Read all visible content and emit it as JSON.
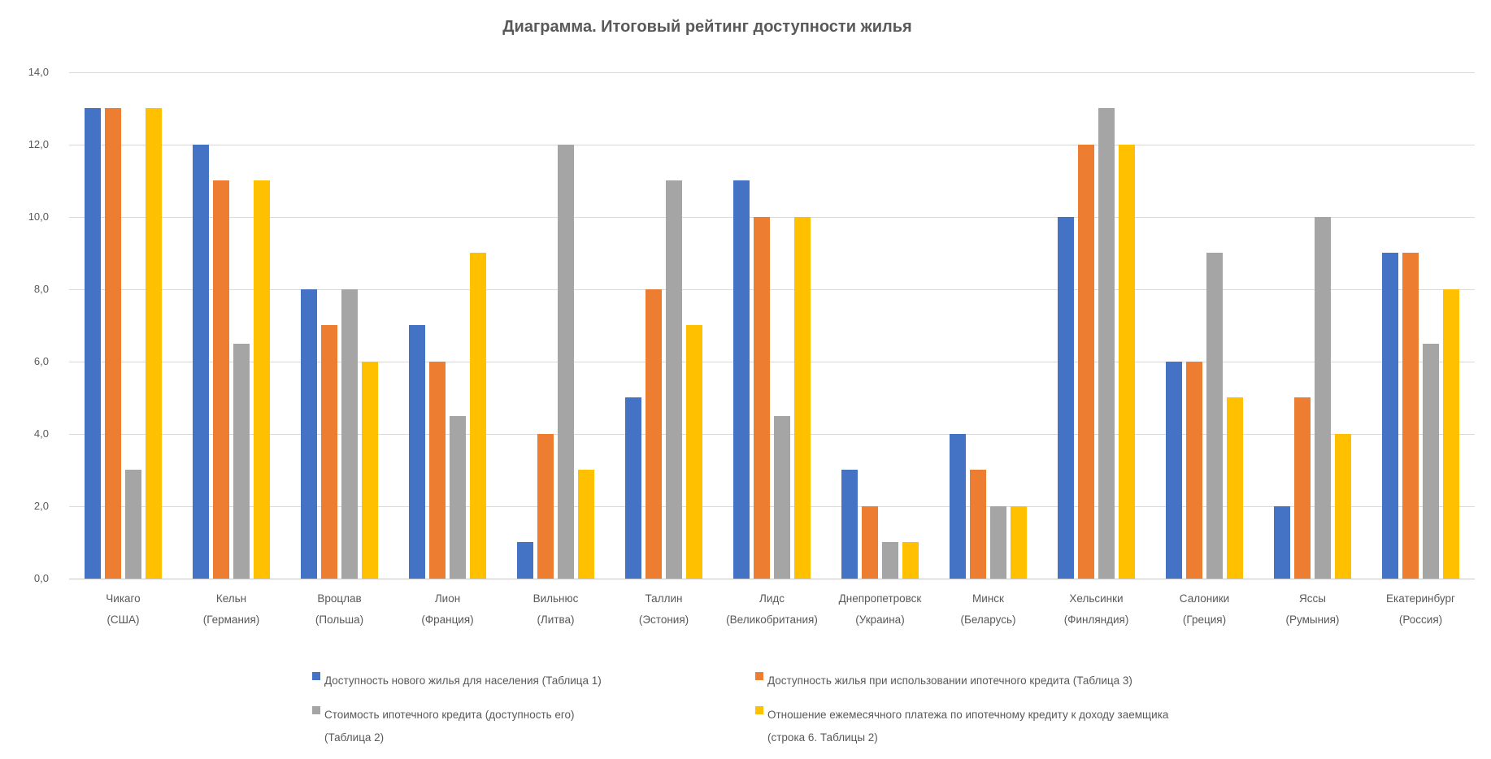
{
  "chart_data": {
    "type": "bar",
    "title": "Диаграмма. Итоговый рейтинг доступности жилья",
    "grid": true,
    "legend_position": "bottom",
    "background_color": "#ffffff",
    "grid_color": "#d9d9d9",
    "text_color": "#595959",
    "y_axis": {
      "min": 0,
      "max": 14,
      "ticks": [
        0,
        2,
        4,
        6,
        8,
        10,
        12,
        14
      ],
      "tick_labels": [
        "0,0",
        "2,0",
        "4,0",
        "6,0",
        "8,0",
        "10,0",
        "12,0",
        "14,0"
      ]
    },
    "categories": [
      {
        "name": "Чикаго",
        "sub": "(США)"
      },
      {
        "name": "Кельн",
        "sub": "(Германия)"
      },
      {
        "name": "Вроцлав",
        "sub": "(Польша)"
      },
      {
        "name": "Лион",
        "sub": "(Франция)"
      },
      {
        "name": "Вильнюс",
        "sub": "(Литва)"
      },
      {
        "name": "Таллин",
        "sub": "(Эстония)"
      },
      {
        "name": "Лидс",
        "sub": "(Великобритания)"
      },
      {
        "name": "Днепропетровск",
        "sub": "(Украина)"
      },
      {
        "name": "Минск",
        "sub": "(Беларусь)"
      },
      {
        "name": "Хельсинки",
        "sub": "(Финляндия)"
      },
      {
        "name": "Салоники",
        "sub": "(Греция)"
      },
      {
        "name": "Яссы",
        "sub": "(Румыния)"
      },
      {
        "name": "Екатеринбург",
        "sub": "(Россия)"
      }
    ],
    "series": [
      {
        "name": "Доступность нового жилья для населения (Таблица 1)",
        "legend_lines": [
          "Доступность нового жилья для населения (Таблица 1)"
        ],
        "color": "#4472C4",
        "values": [
          13,
          12,
          8,
          7,
          1,
          5,
          11,
          3,
          4,
          10,
          6,
          2,
          9
        ]
      },
      {
        "name": "Доступность жилья при использовании ипотечного кредита (Таблица 3)",
        "legend_lines": [
          "Доступность жилья при использовании ипотечного кредита (Таблица 3)"
        ],
        "color": "#ED7D31",
        "values": [
          13,
          11,
          7,
          6,
          4,
          8,
          10,
          2,
          3,
          12,
          6,
          5,
          9
        ]
      },
      {
        "name": "Стоимость ипотечного кредита (доступность его) (Таблица 2)",
        "legend_lines": [
          "Стоимость ипотечного кредита (доступность его)",
          "(Таблица 2)"
        ],
        "color": "#A5A5A5",
        "values": [
          3,
          6.5,
          8,
          4.5,
          12,
          11,
          4.5,
          1,
          2,
          13,
          9,
          10,
          6.5
        ]
      },
      {
        "name": "Отношение ежемесячного платежа по ипотечному кредиту к доходу заемщика (строка 6. Таблицы 2)",
        "legend_lines": [
          "Отношение ежемесячного платежа по ипотечному кредиту к доходу заемщика",
          "(строка 6. Таблицы 2)"
        ],
        "color": "#FFC000",
        "values": [
          13,
          11,
          6,
          9,
          3,
          7,
          10,
          1,
          2,
          12,
          5,
          4,
          8
        ]
      }
    ]
  }
}
